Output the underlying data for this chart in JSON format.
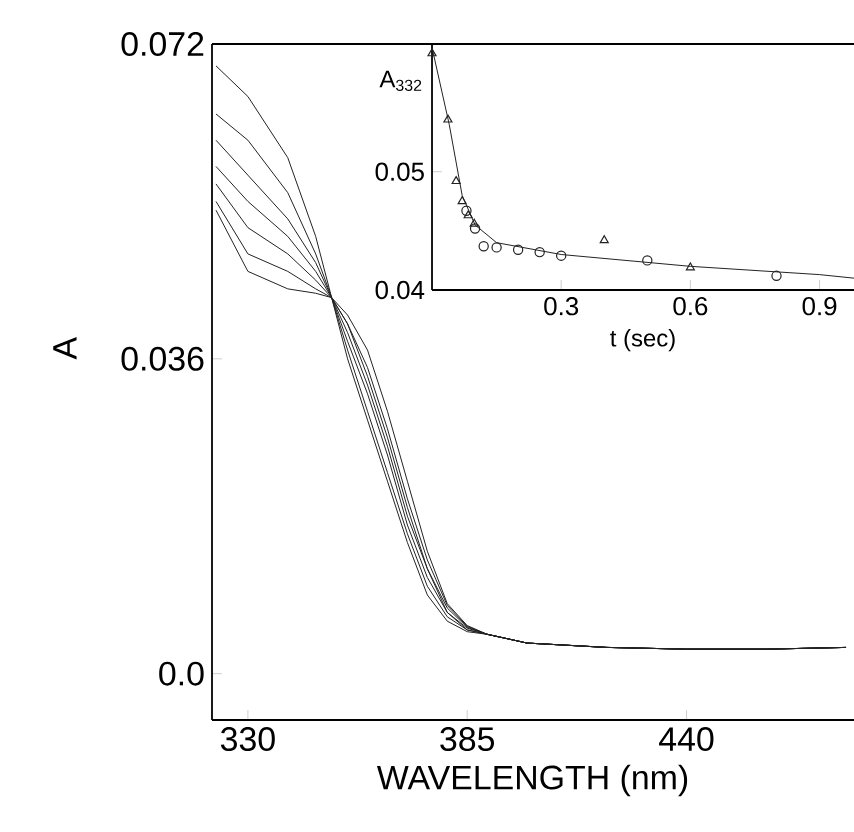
{
  "chart_data": [
    {
      "type": "line",
      "xlabel": "WAVELENGTH (nm)",
      "ylabel": "A",
      "xlim": [
        321,
        482
      ],
      "ylim": [
        -0.0053,
        0.072
      ],
      "xticks": [
        330,
        385,
        440
      ],
      "yticks": [
        {
          "value": 0,
          "label": "0.0"
        },
        0.036,
        0.072
      ],
      "line_style": "solid",
      "x": [
        322,
        330,
        340,
        347,
        351,
        355,
        360,
        365,
        370,
        375,
        380,
        385,
        390,
        400,
        420,
        440,
        460,
        480
      ],
      "series": [
        {
          "color": "#222222",
          "values": [
            0.0695,
            0.066,
            0.059,
            0.05,
            0.043,
            0.036,
            0.029,
            0.022,
            0.015,
            0.009,
            0.006,
            0.0048,
            0.0045,
            0.0035,
            0.003,
            0.0028,
            0.0028,
            0.003
          ]
        },
        {
          "color": "#222222",
          "values": [
            0.064,
            0.061,
            0.055,
            0.048,
            0.043,
            0.037,
            0.03,
            0.023,
            0.016,
            0.01,
            0.0065,
            0.005,
            0.0045,
            0.0035,
            0.003,
            0.0028,
            0.0028,
            0.003
          ]
        },
        {
          "color": "#222222",
          "values": [
            0.061,
            0.057,
            0.052,
            0.047,
            0.043,
            0.038,
            0.032,
            0.025,
            0.017,
            0.011,
            0.007,
            0.005,
            0.0045,
            0.0035,
            0.003,
            0.0028,
            0.0028,
            0.003
          ]
        },
        {
          "color": "#222222",
          "values": [
            0.058,
            0.054,
            0.05,
            0.046,
            0.043,
            0.039,
            0.033,
            0.026,
            0.018,
            0.012,
            0.007,
            0.0052,
            0.0045,
            0.0035,
            0.003,
            0.0028,
            0.0028,
            0.003
          ]
        },
        {
          "color": "#222222",
          "values": [
            0.056,
            0.051,
            0.048,
            0.045,
            0.043,
            0.04,
            0.034,
            0.027,
            0.019,
            0.012,
            0.0075,
            0.0053,
            0.0045,
            0.0035,
            0.003,
            0.0028,
            0.0028,
            0.003
          ]
        },
        {
          "color": "#222222",
          "values": [
            0.054,
            0.048,
            0.046,
            0.044,
            0.043,
            0.04,
            0.035,
            0.028,
            0.02,
            0.013,
            0.0078,
            0.0054,
            0.0045,
            0.0035,
            0.003,
            0.0028,
            0.0028,
            0.003
          ]
        },
        {
          "color": "#222222",
          "values": [
            0.053,
            0.046,
            0.044,
            0.0435,
            0.043,
            0.041,
            0.037,
            0.03,
            0.022,
            0.014,
            0.008,
            0.0055,
            0.0045,
            0.0035,
            0.003,
            0.0028,
            0.0028,
            0.003
          ]
        }
      ]
    },
    {
      "type": "scatter",
      "xlabel": "t (sec)",
      "ylabel": "A$_{332}$",
      "xlim": [
        0,
        0.98
      ],
      "ylim": [
        0.04,
        0.0608
      ],
      "xticks": [
        0.3,
        0.6,
        0.9
      ],
      "yticks": [
        0.04,
        0.05
      ],
      "series": [
        {
          "color": "#222222",
          "marker": "triangle",
          "x": [
            0,
            0.037,
            0.056,
            0.07,
            0.084,
            0.098,
            0.4,
            0.6
          ],
          "values": [
            0.06,
            0.0544,
            0.0492,
            0.0475,
            0.0463,
            0.0456,
            0.0442,
            0.0419
          ]
        },
        {
          "color": "#222222",
          "marker": "circle",
          "x": [
            0.08,
            0.1,
            0.12,
            0.15,
            0.2,
            0.25,
            0.3,
            0.5,
            0.8
          ],
          "values": [
            0.0467,
            0.0452,
            0.0437,
            0.0436,
            0.0434,
            0.0432,
            0.0429,
            0.0425,
            0.0412
          ]
        },
        {
          "type": "line",
          "color": "#222222",
          "marker": "none",
          "x": [
            0,
            0.04,
            0.07,
            0.1,
            0.15,
            0.3,
            0.6,
            0.9,
            0.98
          ],
          "values": [
            0.0605,
            0.054,
            0.048,
            0.0455,
            0.044,
            0.043,
            0.042,
            0.0413,
            0.041
          ]
        }
      ]
    }
  ]
}
